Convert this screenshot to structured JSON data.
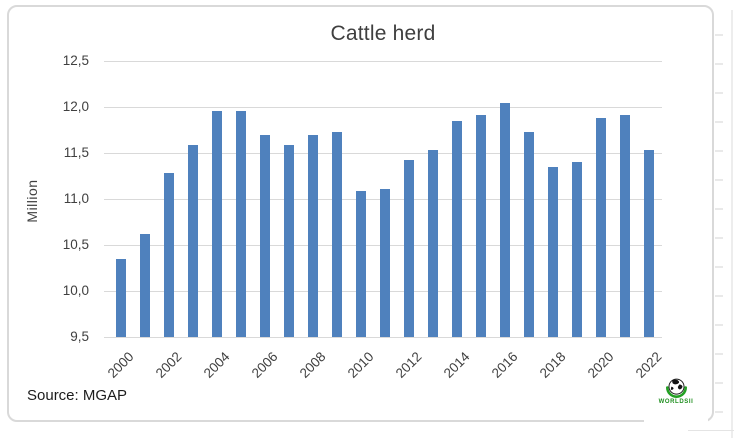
{
  "title": "Cattle herd",
  "source_note": "Source: MGAP",
  "watermark": {
    "icon": "globe-icon",
    "text": "WORLDSII",
    "text_color": "#1f8f1f"
  },
  "colors": {
    "bar": "#4F81BD",
    "gridline": "#d9d9d9",
    "frame_border": "#d9d9d9",
    "title_text": "#3f3f3f",
    "tick_text": "#404040",
    "source_text": "#1c1c1c"
  },
  "chart_data": {
    "type": "bar",
    "title": "Cattle herd",
    "xlabel": "",
    "ylabel": "Million",
    "categories": [
      "2000",
      "2001",
      "2002",
      "2003",
      "2004",
      "2005",
      "2006",
      "2007",
      "2008",
      "2009",
      "2010",
      "2011",
      "2012",
      "2013",
      "2014",
      "2015",
      "2016",
      "2017",
      "2018",
      "2019",
      "2020",
      "2021",
      "2022"
    ],
    "values": [
      10.35,
      10.62,
      11.28,
      11.59,
      11.96,
      11.96,
      11.7,
      11.59,
      11.7,
      11.73,
      11.09,
      11.11,
      11.42,
      11.53,
      11.85,
      11.91,
      12.04,
      11.73,
      11.35,
      11.4,
      11.88,
      11.91,
      11.53
    ],
    "ylim": [
      9.5,
      12.5
    ],
    "ytick_values": [
      12.5,
      12.0,
      11.5,
      11.0,
      10.5,
      10.0,
      9.5
    ],
    "ytick_labels": [
      "12,5",
      "12,0",
      "11,5",
      "11,0",
      "10,5",
      "10,0",
      "9,5"
    ],
    "xtick_labels": [
      "2000",
      "2002",
      "2004",
      "2006",
      "2008",
      "2010",
      "2012",
      "2014",
      "2016",
      "2018",
      "2020",
      "2022"
    ],
    "xtick_shown_every": 2,
    "grid": true,
    "legend": "none",
    "bar_color": "#4F81BD",
    "decimal_separator": ","
  }
}
